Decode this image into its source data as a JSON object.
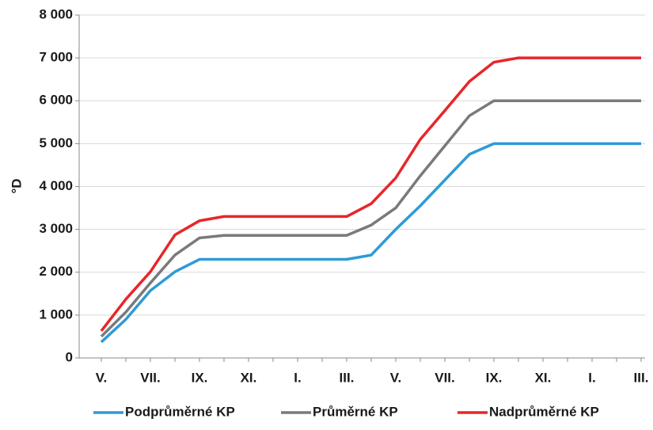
{
  "chart_data": {
    "type": "line",
    "ylabel": "°D",
    "categories": [
      "V.",
      null,
      "VII.",
      null,
      "IX.",
      null,
      "XI.",
      null,
      "I.",
      null,
      "III.",
      null,
      "V.",
      null,
      "VII.",
      null,
      "IX.",
      null,
      "XI.",
      null,
      "I.",
      null,
      "III."
    ],
    "series": [
      {
        "name": "Podprůměrné KP",
        "color": "#2e9bd6",
        "values": [
          370,
          900,
          1570,
          2010,
          2300,
          2300,
          2300,
          2300,
          2300,
          2300,
          2300,
          2400,
          3000,
          3550,
          4150,
          4750,
          5000,
          5000,
          5000,
          5000,
          5000,
          5000,
          5000
        ]
      },
      {
        "name": "Průměrné KP",
        "color": "#7a7a7a",
        "values": [
          500,
          1070,
          1750,
          2400,
          2800,
          2860,
          2860,
          2860,
          2860,
          2860,
          2860,
          3100,
          3500,
          4250,
          4950,
          5650,
          6000,
          6000,
          6000,
          6000,
          6000,
          6000,
          6000
        ]
      },
      {
        "name": "Nadprůměrné KP",
        "color": "#e8262a",
        "values": [
          630,
          1370,
          2010,
          2870,
          3200,
          3300,
          3300,
          3300,
          3300,
          3300,
          3300,
          3600,
          4200,
          5100,
          5770,
          6450,
          6900,
          7000,
          7000,
          7000,
          7000,
          7000,
          7000
        ]
      }
    ],
    "ylim": [
      0,
      8000
    ],
    "yticks": [
      0,
      {
        "value": 1000,
        "label": "1 000"
      },
      {
        "value": 2000,
        "label": "2 000"
      },
      {
        "value": 3000,
        "label": "3 000"
      },
      {
        "value": 4000,
        "label": "4 000"
      },
      {
        "value": 5000,
        "label": "5 000"
      },
      {
        "value": 6000,
        "label": "6 000"
      },
      {
        "value": 7000,
        "label": "7 000"
      },
      {
        "value": 8000,
        "label": "8 000"
      }
    ],
    "grid": true,
    "legend": "bottom"
  }
}
